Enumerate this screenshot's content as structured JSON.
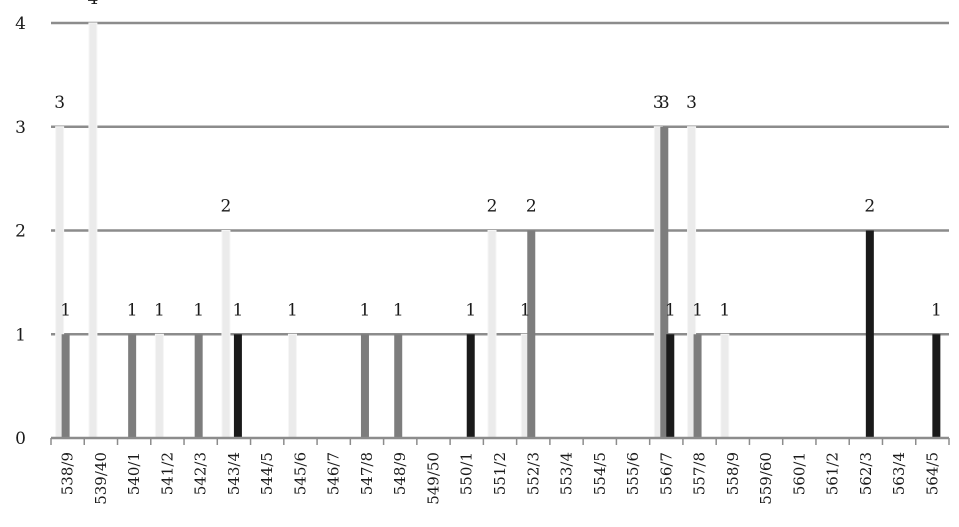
{
  "chart_data": {
    "type": "bar",
    "title": "",
    "xlabel": "",
    "ylabel": "",
    "ylim": [
      0,
      4
    ],
    "y_ticks": [
      "0",
      "1",
      "2",
      "3",
      "4"
    ],
    "grid": true,
    "categories": [
      "538/9",
      "539/40",
      "540/1",
      "541/2",
      "542/3",
      "543/4",
      "544/5",
      "545/6",
      "546/7",
      "547/8",
      "548/9",
      "549/50",
      "550/1",
      "551/2",
      "552/3",
      "553/4",
      "554/5",
      "555/6",
      "556/7",
      "557/8",
      "558/9",
      "559/60",
      "560/1",
      "561/2",
      "562/3",
      "563/4",
      "564/5"
    ],
    "series": [
      {
        "color": "#ebebeb",
        "values": [
          3,
          4,
          0,
          1,
          0,
          2,
          0,
          1,
          0,
          0,
          0,
          0,
          0,
          2,
          1,
          0,
          0,
          0,
          3,
          3,
          1,
          0,
          0,
          0,
          0,
          0,
          0
        ]
      },
      {
        "color": "#7d7d7d",
        "values": [
          1,
          0,
          1,
          0,
          1,
          0,
          0,
          0,
          0,
          1,
          1,
          0,
          0,
          0,
          2,
          0,
          0,
          0,
          3,
          1,
          0,
          0,
          0,
          0,
          0,
          0,
          0
        ]
      },
      {
        "color": "#1a1a1a",
        "values": [
          0,
          0,
          0,
          0,
          0,
          1,
          0,
          0,
          0,
          0,
          0,
          0,
          1,
          0,
          0,
          0,
          0,
          0,
          1,
          0,
          0,
          0,
          0,
          0,
          2,
          0,
          1
        ]
      }
    ]
  }
}
